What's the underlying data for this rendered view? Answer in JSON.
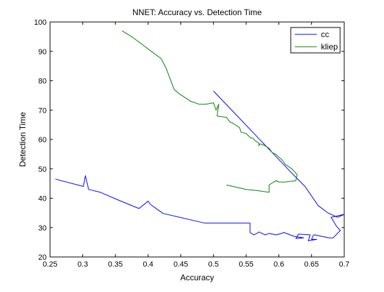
{
  "chart_data": {
    "type": "line",
    "title": "NNET: Accuracy vs. Detection Time",
    "xlabel": "Accuracy",
    "ylabel": "Detection Time",
    "xlim": [
      0.25,
      0.7
    ],
    "ylim": [
      20,
      100
    ],
    "xticks": [
      "0.25",
      "0.3",
      "0.35",
      "0.4",
      "0.45",
      "0.5",
      "0.55",
      "0.6",
      "0.65",
      "0.7"
    ],
    "yticks": [
      "20",
      "30",
      "40",
      "50",
      "60",
      "70",
      "80",
      "90",
      "100"
    ],
    "grid": false,
    "legend_position": "top-right",
    "series": [
      {
        "name": "cc",
        "color": "#0000ff",
        "x": [
          0.5,
          0.53,
          0.56,
          0.59,
          0.62,
          0.64,
          0.66,
          0.675,
          0.69,
          0.7,
          0.68,
          0.688,
          0.694,
          0.683,
          0.677,
          0.655,
          0.653,
          0.65,
          0.658,
          0.645,
          0.648,
          0.63,
          0.626,
          0.638,
          0.624,
          0.608,
          0.596,
          0.585,
          0.579,
          0.57,
          0.562,
          0.556,
          0.556,
          0.554,
          0.553,
          0.487,
          0.423,
          0.414,
          0.403,
          0.4,
          0.386,
          0.353,
          0.327,
          0.309,
          0.304,
          0.301,
          0.258
        ],
        "y": [
          76.5,
          69.5,
          62.5,
          55.5,
          48.5,
          44,
          37.5,
          35,
          33.5,
          34.5,
          33.5,
          30.5,
          29,
          26.5,
          26.5,
          27.5,
          27.5,
          26,
          26,
          25.5,
          27.5,
          27.8,
          26.3,
          26.5,
          27,
          28.3,
          27.5,
          28,
          27.5,
          28.5,
          27.5,
          28.3,
          31.5,
          31.5,
          31.5,
          31.5,
          34.8,
          36.2,
          38,
          39,
          36.5,
          39.5,
          42,
          43,
          47.7,
          44,
          46.5
        ]
      },
      {
        "name": "kliep",
        "color": "#008000",
        "x": [
          0.36,
          0.375,
          0.39,
          0.405,
          0.42,
          0.428,
          0.433,
          0.44,
          0.448,
          0.465,
          0.478,
          0.488,
          0.5,
          0.504,
          0.508,
          0.5055,
          0.52,
          0.525,
          0.53,
          0.54,
          0.542,
          0.55,
          0.557,
          0.56,
          0.564,
          0.568,
          0.57,
          0.569,
          0.571,
          0.578,
          0.585,
          0.59,
          0.595,
          0.605,
          0.61,
          0.62,
          0.628,
          0.626,
          0.61,
          0.6,
          0.596,
          0.592,
          0.585,
          0.585,
          0.57,
          0.55,
          0.52
        ],
        "y": [
          97,
          95,
          92.5,
          90,
          87.5,
          84,
          81,
          77,
          75.5,
          73,
          72,
          72,
          72.5,
          70,
          72,
          68,
          67.5,
          66,
          65.5,
          64,
          62.5,
          62,
          60.5,
          60.5,
          59.5,
          59,
          58.5,
          57.8,
          58.5,
          58,
          57,
          55.5,
          55,
          53,
          51.5,
          50,
          48,
          46,
          45.5,
          45.5,
          46,
          45.5,
          44.5,
          42,
          42.5,
          43,
          44.5
        ]
      }
    ]
  }
}
